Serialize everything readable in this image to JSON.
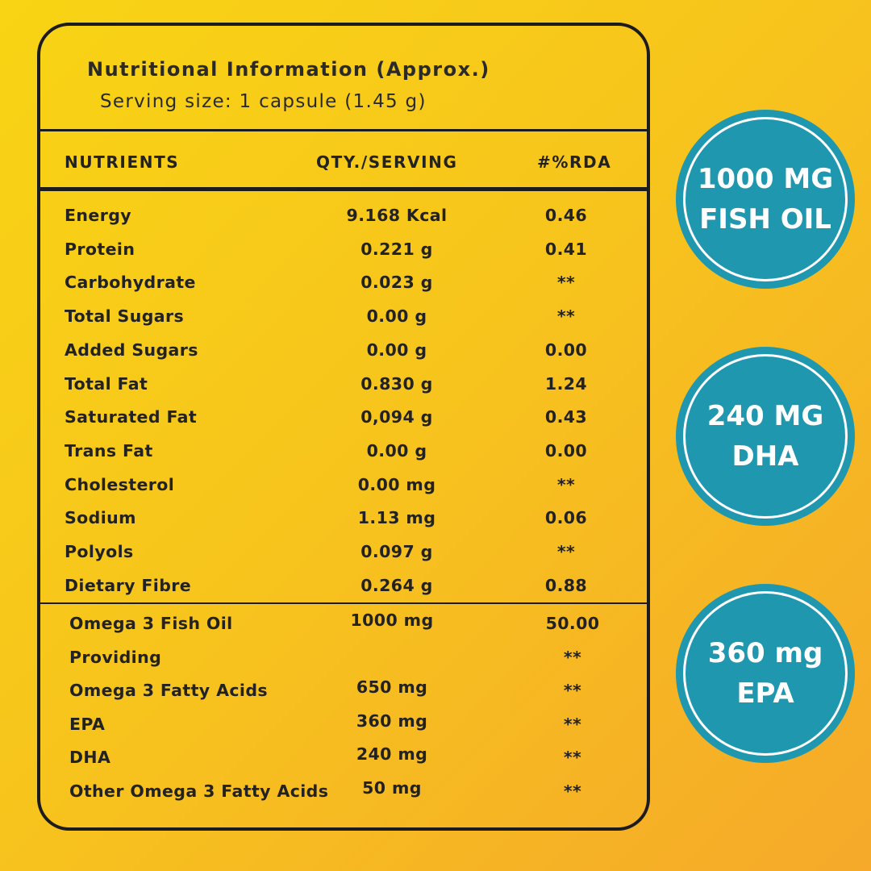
{
  "panel": {
    "title": "Nutritional Information (Approx.)",
    "serving": "Serving size: 1 capsule (1.45 g)",
    "headers": {
      "nutrients": "NUTRIENTS",
      "qty": "QTY./SERVING",
      "rda": "#%RDA"
    },
    "rows": [
      {
        "name": "Energy",
        "qty": "9.168 Kcal",
        "rda": "0.46"
      },
      {
        "name": "Protein",
        "qty": "0.221 g",
        "rda": "0.41"
      },
      {
        "name": "Carbohydrate",
        "qty": "0.023 g",
        "rda": "**"
      },
      {
        "name": "Total Sugars",
        "qty": "0.00 g",
        "rda": "**"
      },
      {
        "name": "Added Sugars",
        "qty": "0.00  g",
        "rda": "0.00"
      },
      {
        "name": "Total Fat",
        "qty": "0.830 g",
        "rda": "1.24"
      },
      {
        "name": "Saturated Fat",
        "qty": "0,094 g",
        "rda": "0.43"
      },
      {
        "name": "Trans Fat",
        "qty": "0.00 g",
        "rda": "0.00"
      },
      {
        "name": "Cholesterol",
        "qty": "0.00 mg",
        "rda": "**"
      },
      {
        "name": "Sodium",
        "qty": "1.13 mg",
        "rda": "0.06"
      },
      {
        "name": "Polyols",
        "qty": "0.097 g",
        "rda": "**"
      },
      {
        "name": "Dietary Fibre",
        "qty": "0.264 g",
        "rda": "0.88"
      }
    ],
    "omega_rows": [
      {
        "name": "Omega 3 Fish Oil",
        "qty": "1000 mg",
        "rda": "50.00"
      },
      {
        "name": "Providing",
        "qty": "",
        "rda": "**"
      },
      {
        "name": "Omega 3 Fatty Acids",
        "qty": "650 mg",
        "rda": "**"
      },
      {
        "name": "EPA",
        "qty": "360 mg",
        "rda": "**"
      },
      {
        "name": "DHA",
        "qty": "240 mg",
        "rda": "**"
      },
      {
        "name": "Other Omega 3 Fatty Acids",
        "qty": "50 mg",
        "rda": "**"
      }
    ]
  },
  "badges": [
    {
      "line1": "1000 MG",
      "line2": "FISH OIL"
    },
    {
      "line1": "240 MG",
      "line2": "DHA"
    },
    {
      "line1": "360 mg",
      "line2": "EPA"
    }
  ],
  "colors": {
    "background": "#f8d414",
    "badge": "#1f97af",
    "text": "#222222"
  }
}
